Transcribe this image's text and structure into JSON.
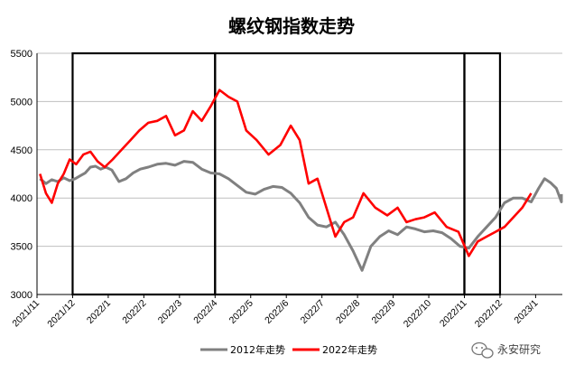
{
  "chart_data": {
    "type": "line",
    "title": "螺纹钢指数走势",
    "ylim": [
      3000,
      5500
    ],
    "yticks": [
      "3000",
      "3500",
      "4000",
      "4500",
      "5000",
      "5500"
    ],
    "xtick_labels": [
      "2021/11",
      "2021/12",
      "2022/1",
      "2022/2",
      "2022/3",
      "2022/4",
      "2022/5",
      "2022/6",
      "2022/7",
      "2022/8",
      "2022/9",
      "2022/10",
      "2022/11",
      "2022/12",
      "2023/1"
    ],
    "grid": "horizontal",
    "legend": "bottom-center",
    "highlight_boxes": [
      {
        "from": "2021/12",
        "to": "2022/4"
      },
      {
        "from": "2022/4",
        "to": "2022/11"
      },
      {
        "from": "2022/11",
        "to": "2022/12"
      }
    ],
    "series": [
      {
        "name": "2012年走势",
        "color": "#808080",
        "points": [
          [
            "2021/11",
            4200
          ],
          [
            "2021/11",
            4150
          ],
          [
            "2021/11",
            4190
          ],
          [
            "2021/11",
            4170
          ],
          [
            "2021/11",
            4210
          ],
          [
            "2021/11",
            4180
          ],
          [
            "2021/12",
            4200
          ],
          [
            "2021/12",
            4230
          ],
          [
            "2021/12",
            4260
          ],
          [
            "2021/12",
            4320
          ],
          [
            "2021/12",
            4330
          ],
          [
            "2021/12",
            4300
          ],
          [
            "2021/12",
            4320
          ],
          [
            "2022/1",
            4290
          ],
          [
            "2022/1",
            4170
          ],
          [
            "2022/1",
            4200
          ],
          [
            "2022/1",
            4260
          ],
          [
            "2022/1",
            4300
          ],
          [
            "2022/2",
            4320
          ],
          [
            "2022/2",
            4350
          ],
          [
            "2022/2",
            4360
          ],
          [
            "2022/2",
            4340
          ],
          [
            "2022/3",
            4380
          ],
          [
            "2022/3",
            4370
          ],
          [
            "2022/3",
            4300
          ],
          [
            "2022/3",
            4260
          ],
          [
            "2022/4",
            4250
          ],
          [
            "2022/4",
            4200
          ],
          [
            "2022/4",
            4130
          ],
          [
            "2022/4",
            4060
          ],
          [
            "2022/5",
            4040
          ],
          [
            "2022/5",
            4090
          ],
          [
            "2022/5",
            4120
          ],
          [
            "2022/5",
            4110
          ],
          [
            "2022/6",
            4050
          ],
          [
            "2022/6",
            3950
          ],
          [
            "2022/6",
            3800
          ],
          [
            "2022/6",
            3720
          ],
          [
            "2022/7",
            3700
          ],
          [
            "2022/7",
            3750
          ],
          [
            "2022/7",
            3620
          ],
          [
            "2022/7",
            3450
          ],
          [
            "2022/8",
            3250
          ],
          [
            "2022/8",
            3500
          ],
          [
            "2022/8",
            3600
          ],
          [
            "2022/8",
            3660
          ],
          [
            "2022/9",
            3620
          ],
          [
            "2022/9",
            3700
          ],
          [
            "2022/9",
            3680
          ],
          [
            "2022/9",
            3650
          ],
          [
            "2022/10",
            3660
          ],
          [
            "2022/10",
            3640
          ],
          [
            "2022/10",
            3580
          ],
          [
            "2022/10",
            3500
          ],
          [
            "2022/11",
            3480
          ],
          [
            "2022/11",
            3600
          ],
          [
            "2022/11",
            3700
          ],
          [
            "2022/11",
            3800
          ],
          [
            "2022/12",
            3950
          ],
          [
            "2022/12",
            4000
          ],
          [
            "2022/12",
            4000
          ],
          [
            "2022/12",
            3960
          ],
          [
            "2023/1",
            4100
          ],
          [
            "2023/1",
            4200
          ],
          [
            "2023/1",
            4160
          ],
          [
            "2023/1",
            4100
          ],
          [
            "2023/1",
            3960
          ],
          [
            "2023/1",
            4040
          ]
        ]
      },
      {
        "name": "2022年走势",
        "color": "#ff0000",
        "points": [
          [
            "2021/11",
            4250
          ],
          [
            "2021/11",
            4050
          ],
          [
            "2021/11",
            3950
          ],
          [
            "2021/11",
            4150
          ],
          [
            "2021/11",
            4250
          ],
          [
            "2021/11",
            4400
          ],
          [
            "2021/12",
            4350
          ],
          [
            "2021/12",
            4450
          ],
          [
            "2021/12",
            4480
          ],
          [
            "2021/12",
            4380
          ],
          [
            "2021/12",
            4320
          ],
          [
            "2022/1",
            4400
          ],
          [
            "2022/1",
            4500
          ],
          [
            "2022/1",
            4600
          ],
          [
            "2022/1",
            4700
          ],
          [
            "2022/2",
            4780
          ],
          [
            "2022/2",
            4800
          ],
          [
            "2022/2",
            4850
          ],
          [
            "2022/2",
            4650
          ],
          [
            "2022/3",
            4700
          ],
          [
            "2022/3",
            4900
          ],
          [
            "2022/3",
            4800
          ],
          [
            "2022/3",
            4950
          ],
          [
            "2022/4",
            5120
          ],
          [
            "2022/4",
            5050
          ],
          [
            "2022/4",
            5000
          ],
          [
            "2022/4",
            4700
          ],
          [
            "2022/5",
            4600
          ],
          [
            "2022/5",
            4450
          ],
          [
            "2022/5",
            4550
          ],
          [
            "2022/6",
            4750
          ],
          [
            "2022/6",
            4600
          ],
          [
            "2022/6",
            4150
          ],
          [
            "2022/6",
            4200
          ],
          [
            "2022/7",
            3900
          ],
          [
            "2022/7",
            3600
          ],
          [
            "2022/7",
            3750
          ],
          [
            "2022/7",
            3800
          ],
          [
            "2022/8",
            4050
          ],
          [
            "2022/8",
            3900
          ],
          [
            "2022/8",
            3820
          ],
          [
            "2022/9",
            3900
          ],
          [
            "2022/9",
            3750
          ],
          [
            "2022/9",
            3780
          ],
          [
            "2022/9",
            3800
          ],
          [
            "2022/10",
            3850
          ],
          [
            "2022/10",
            3700
          ],
          [
            "2022/10",
            3650
          ],
          [
            "2022/11",
            3400
          ],
          [
            "2022/11",
            3550
          ],
          [
            "2022/11",
            3600
          ],
          [
            "2022/11",
            3650
          ],
          [
            "2022/12",
            3700
          ],
          [
            "2022/12",
            3800
          ],
          [
            "2022/12",
            3900
          ],
          [
            "2022/12",
            4050
          ]
        ]
      }
    ]
  },
  "watermark": {
    "icon": "wechat-icon",
    "text": "永安研究"
  }
}
